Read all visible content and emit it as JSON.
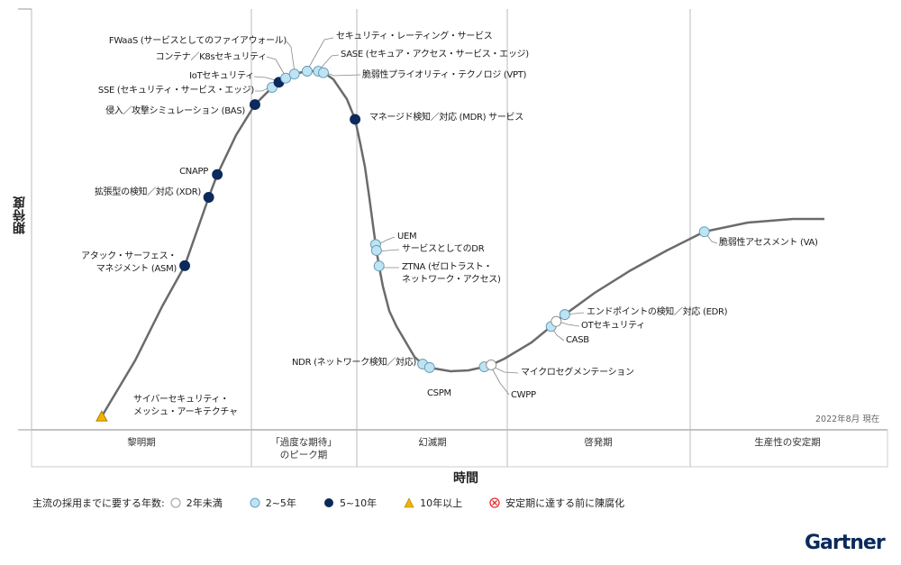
{
  "chart_data": {
    "type": "scatter",
    "title": "",
    "xlabel": "時間",
    "ylabel": "期待度",
    "xlim": [
      0,
      100
    ],
    "as_of": "2022年8月 現在",
    "phases": [
      "黎明期",
      "「過度な期待」\nのピーク期",
      "幻滅期",
      "啓発期",
      "生産性の安定期"
    ],
    "legend": {
      "title": "主流の採用までに要する年数:",
      "items": [
        {
          "key": "lt2",
          "label": "2年未満",
          "shape": "circle",
          "color": "#ffffff"
        },
        {
          "key": "2to5",
          "label": "2~5年",
          "shape": "circle",
          "color": "#bfe3f2"
        },
        {
          "key": "5to10",
          "label": "5~10年",
          "shape": "circle",
          "color": "#0b2a5b"
        },
        {
          "key": "gt10",
          "label": "10年以上",
          "shape": "triangle",
          "color": "#f2b300"
        },
        {
          "key": "obsolete",
          "label": "安定期に達する前に陳腐化",
          "shape": "x-circle",
          "color": "#e03030"
        }
      ]
    },
    "points": [
      {
        "label": "サイバーセキュリティ・\nメッシュ・アーキテクチャ",
        "time": 8.2,
        "category": "gt10"
      },
      {
        "label": "アタック・サーフェス・\nマネジメント (ASM)",
        "time": 17.9,
        "category": "5to10"
      },
      {
        "label": "拡張型の検知／対応 (XDR)",
        "time": 20.7,
        "category": "5to10"
      },
      {
        "label": "CNAPP",
        "time": 21.7,
        "category": "5to10"
      },
      {
        "label": "侵入／攻撃シミュレーション (BAS)",
        "time": 26.1,
        "category": "5to10"
      },
      {
        "label": "SSE (セキュリティ・サービス・エッジ)",
        "time": 28.1,
        "category": "2to5"
      },
      {
        "label": "IoTセキュリティ",
        "time": 28.9,
        "category": "5to10"
      },
      {
        "label": "コンテナ／K8sセキュリティ",
        "time": 29.7,
        "category": "2to5"
      },
      {
        "label": "FWaaS (サービスとしてのファイアウォール)",
        "time": 30.7,
        "category": "2to5"
      },
      {
        "label": "セキュリティ・レーティング・サービス",
        "time": 32.2,
        "category": "2to5"
      },
      {
        "label": "SASE (セキュア・アクセス・サービス・エッジ)",
        "time": 33.5,
        "category": "2to5"
      },
      {
        "label": "脆弱性プライオリティ・テクノロジ (VPT)",
        "time": 34.1,
        "category": "2to5"
      },
      {
        "label": "マネージド検知／対応 (MDR) サービス",
        "time": 37.8,
        "category": "5to10"
      },
      {
        "label": "UEM",
        "time": 40.2,
        "category": "2to5"
      },
      {
        "label": "サービスとしてのDR",
        "time": 40.3,
        "category": "2to5"
      },
      {
        "label": "ZTNA (ゼロトラスト・\nネットワーク・アクセス)",
        "time": 40.6,
        "category": "2to5"
      },
      {
        "label": "NDR (ネットワーク検知／対応)",
        "time": 45.7,
        "category": "2to5"
      },
      {
        "label": "CSPM",
        "time": 46.5,
        "category": "2to5"
      },
      {
        "label": "マイクロセグメンテーション",
        "time": 52.9,
        "category": "2to5"
      },
      {
        "label": "CWPP",
        "time": 53.7,
        "category": "lt2"
      },
      {
        "label": "CASB",
        "time": 60.7,
        "category": "2to5"
      },
      {
        "label": "OTセキュリティ",
        "time": 61.3,
        "category": "lt2"
      },
      {
        "label": "エンドポイントの検知／対応 (EDR)",
        "time": 62.3,
        "category": "2to5"
      },
      {
        "label": "脆弱性アセスメント (VA)",
        "time": 78.6,
        "category": "2to5"
      }
    ]
  },
  "brand": "Gartner"
}
